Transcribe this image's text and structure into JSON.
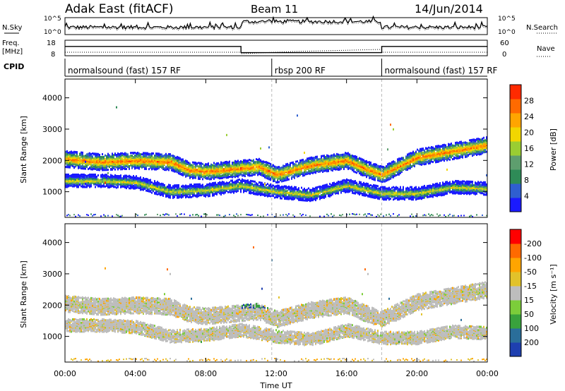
{
  "header": {
    "station": "Adak East (fitACF)",
    "beam": "Beam 11",
    "date": "14/Jun/2014"
  },
  "side_labels": {
    "nsky": "N.Sky",
    "nsearch": "N.Search",
    "freq_line1": "Freq.",
    "freq_line2": "[MHz]",
    "nave": "Nave",
    "cpid": "CPID"
  },
  "noise_axis": {
    "left_ticks": [
      "10^5",
      "10^0"
    ],
    "right_ticks": [
      "10^5",
      "10^0"
    ]
  },
  "freq_axis": {
    "left_ticks": [
      "18",
      "8"
    ],
    "right_ticks": [
      "60",
      "0"
    ]
  },
  "cpid_segments": [
    {
      "name": "normalsound (fast) 157 RF",
      "start": 0,
      "end": 11.75
    },
    {
      "name": "rbsp 200 RF",
      "start": 11.75,
      "end": 18.0
    },
    {
      "name": "normalsound (fast) 157 RF",
      "start": 18.0,
      "end": 24.0
    }
  ],
  "x_axis": {
    "label": "Time UT",
    "ticks": [
      "00:00",
      "04:00",
      "08:00",
      "12:00",
      "16:00",
      "20:00",
      "00:00"
    ]
  },
  "y_axis": {
    "label": "Slant Range [km]",
    "ticks": [
      "1000",
      "2000",
      "3000",
      "4000"
    ]
  },
  "power_colorbar": {
    "label": "Power [dB]",
    "ticks": [
      "4",
      "8",
      "12",
      "16",
      "20",
      "24",
      "28"
    ],
    "colors": [
      "#1a1aff",
      "#2f5fd0",
      "#2e8b57",
      "#5e9e6e",
      "#9acd32",
      "#f2d600",
      "#ffa500",
      "#ff6a00",
      "#ff2a00"
    ]
  },
  "velocity_colorbar": {
    "label": "Velocity [m s⁻¹]",
    "ticks": [
      "200",
      "100",
      "50",
      "15",
      "-15",
      "-50",
      "-100",
      "-200"
    ],
    "colors": [
      "#1e3fb0",
      "#2a6e9a",
      "#39a23c",
      "#7ccd3a",
      "#bdbdbd",
      "#e2c22a",
      "#ffa500",
      "#ff6a00",
      "#ff0000"
    ]
  },
  "chart_data": {
    "type": "heatmap",
    "title": "Adak East (fitACF) Beam 11 14/Jun/2014",
    "xlabel": "Time UT",
    "ylabel": "Slant Range [km]",
    "x_range_hours": [
      0,
      24
    ],
    "y_range_km": [
      180,
      4600
    ],
    "frequency_mhz": [
      {
        "start": 0,
        "end": 10,
        "value": 14
      },
      {
        "start": 10,
        "end": 18,
        "value": 10
      },
      {
        "start": 18,
        "end": 24,
        "value": 14
      }
    ],
    "scatter_bands_range_km": [
      {
        "name": "main band",
        "points": [
          [
            0,
            2050
          ],
          [
            2,
            1950
          ],
          [
            4,
            2000
          ],
          [
            6,
            1950
          ],
          [
            7,
            1700
          ],
          [
            8,
            1650
          ],
          [
            9,
            1700
          ],
          [
            10,
            1750
          ],
          [
            11,
            1800
          ],
          [
            12,
            1550
          ],
          [
            14,
            1850
          ],
          [
            16,
            2000
          ],
          [
            17,
            1750
          ],
          [
            18,
            1550
          ],
          [
            20,
            2100
          ],
          [
            22,
            2300
          ],
          [
            24,
            2500
          ]
        ]
      },
      {
        "name": "lower band",
        "points": [
          [
            0,
            1350
          ],
          [
            2,
            1350
          ],
          [
            4,
            1300
          ],
          [
            6,
            1000
          ],
          [
            8,
            1050
          ],
          [
            10,
            1200
          ],
          [
            12,
            1000
          ],
          [
            14,
            900
          ],
          [
            16,
            1200
          ],
          [
            18,
            950
          ],
          [
            20,
            950
          ],
          [
            22,
            1150
          ],
          [
            24,
            1100
          ]
        ]
      }
    ]
  }
}
